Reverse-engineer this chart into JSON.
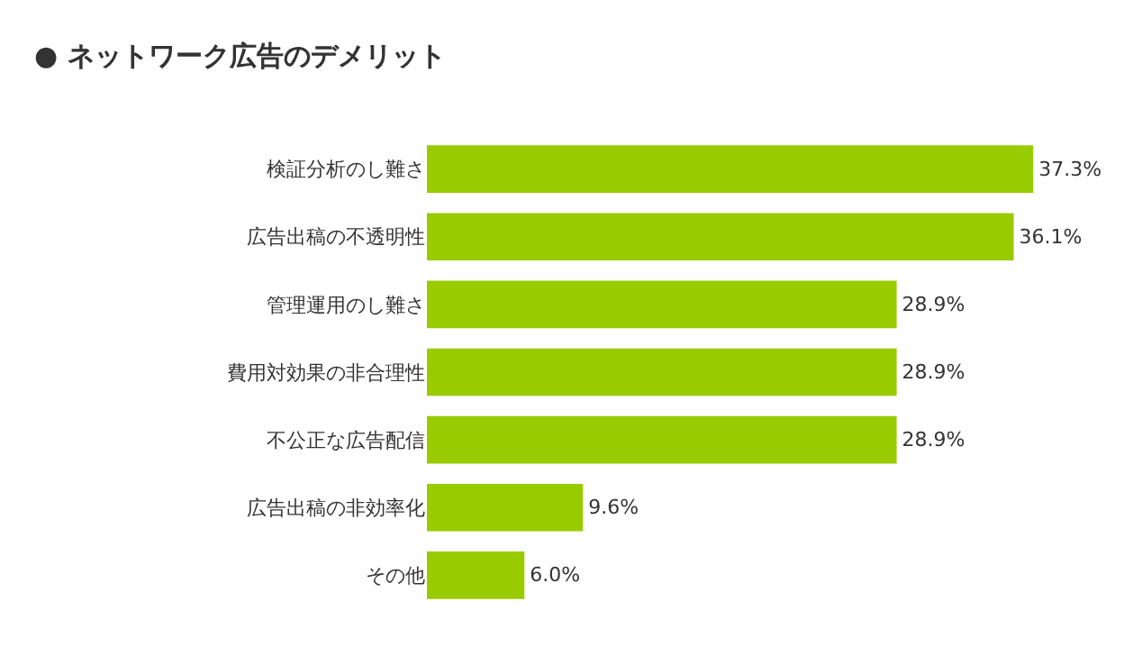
{
  "chart_data": {
    "type": "bar",
    "orientation": "horizontal",
    "title": "● ネットワーク広告のデメリット",
    "categories": [
      "検証分析のし難さ",
      "広告出稿の不透明性",
      "管理運用のし難さ",
      "費用対効果の非合理性",
      "不公正な広告配信",
      "広告出稿の非効率化",
      "その他"
    ],
    "values": [
      37.3,
      36.1,
      28.9,
      28.9,
      28.9,
      9.6,
      6.0
    ],
    "value_labels": [
      "37.3%",
      "36.1%",
      "28.9%",
      "28.9%",
      "28.9%",
      "9.6%",
      "6.0%"
    ],
    "color": "#99cc00"
  }
}
